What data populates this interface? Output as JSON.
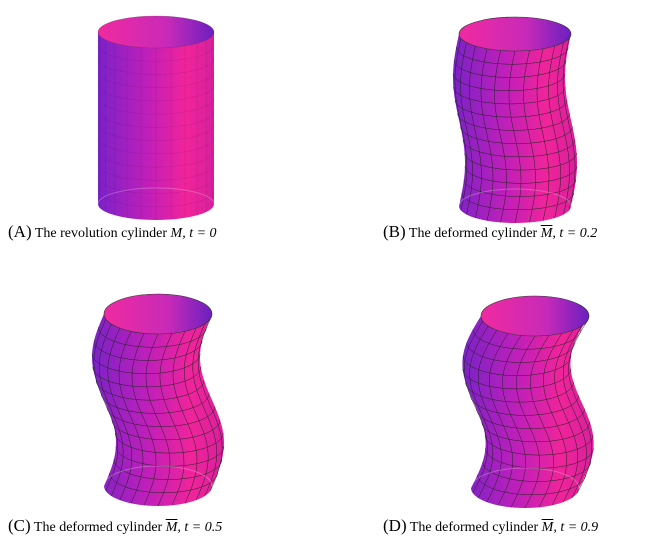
{
  "figures": [
    {
      "label": "(A)",
      "text": "The revolution cylinder",
      "symbol": "M",
      "overline": false,
      "condition": ", t = 0"
    },
    {
      "label": "(B)",
      "text": "The deformed cylinder",
      "symbol": "M",
      "overline": true,
      "condition": ", t = 0.2"
    },
    {
      "label": "(C)",
      "text": "The deformed cylinder",
      "symbol": "M",
      "overline": true,
      "condition": ", t = 0.5"
    },
    {
      "label": "(D)",
      "text": "The deformed cylinder",
      "symbol": "M",
      "overline": true,
      "condition": ", t = 0.9"
    }
  ]
}
